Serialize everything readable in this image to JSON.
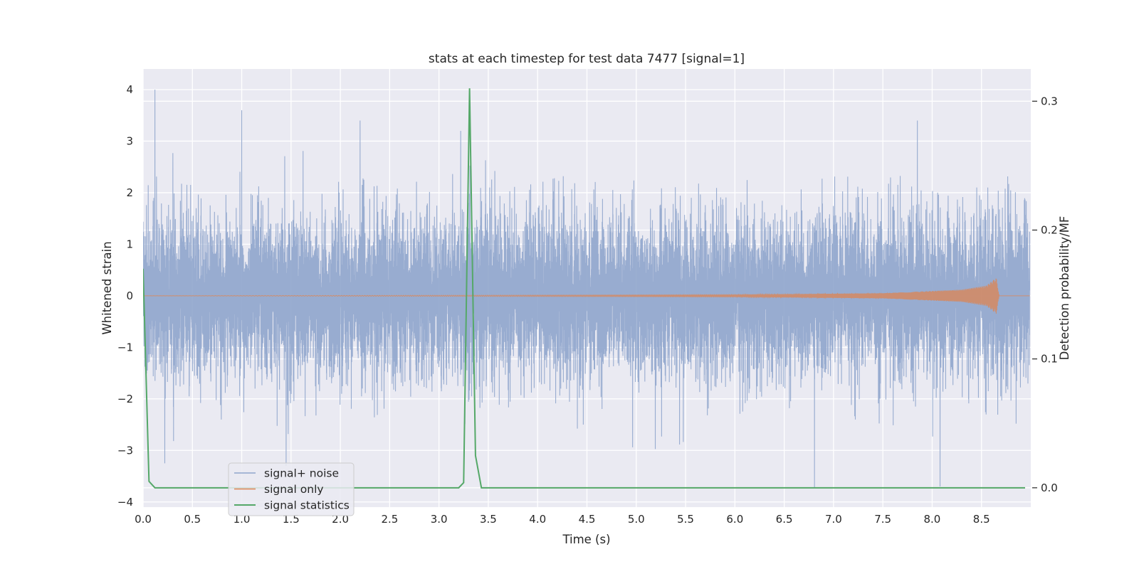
{
  "chart_data": {
    "type": "line",
    "title": "stats at each timestep for test data 7477 [signal=1]",
    "xlabel": "Time (s)",
    "ylabel_left": "Whitened strain",
    "ylabel_right": "Detection probability/MF",
    "xlim": [
      0,
      9
    ],
    "ylim_left": [
      -4.1,
      4.4
    ],
    "ylim_right": [
      -0.015,
      0.325
    ],
    "x_ticks": [
      "0.0",
      "0.5",
      "1.0",
      "1.5",
      "2.0",
      "2.5",
      "3.0",
      "3.5",
      "4.0",
      "4.5",
      "5.0",
      "5.5",
      "6.0",
      "6.5",
      "7.0",
      "7.5",
      "8.0",
      "8.5"
    ],
    "y_ticks_left": [
      "−4",
      "−3",
      "−2",
      "−1",
      "0",
      "1",
      "2",
      "3",
      "4"
    ],
    "y_ticks_right": [
      "0.0",
      "0.1",
      "0.2",
      "0.3"
    ],
    "grid": true,
    "legend_position": "lower-left",
    "series": [
      {
        "name": "signal+ noise",
        "axis": "left",
        "color": "#8fa5cc",
        "sample_rate_hz": 1000,
        "envelope_typical": [
          -1.2,
          1.2
        ],
        "notable_peaks": [
          {
            "x": 0.12,
            "y": 4.0
          },
          {
            "x": 1.0,
            "y": 3.6
          },
          {
            "x": 2.2,
            "y": 3.4
          },
          {
            "x": 3.22,
            "y": 3.2
          },
          {
            "x": 8.08,
            "y": -3.7
          },
          {
            "x": 7.85,
            "y": 3.4
          },
          {
            "x": 1.45,
            "y": -3.3
          },
          {
            "x": 0.22,
            "y": -3.25
          }
        ]
      },
      {
        "name": "signal only",
        "axis": "left",
        "color": "#dd8452",
        "description_points": [
          {
            "x": 0.0,
            "y": 0.0
          },
          {
            "x": 6.0,
            "y": 0.02
          },
          {
            "x": 7.5,
            "y": 0.05
          },
          {
            "x": 8.3,
            "y": 0.12
          },
          {
            "x": 8.55,
            "y": 0.2
          },
          {
            "x": 8.65,
            "y": 0.35
          },
          {
            "x": 8.68,
            "y": 0.0
          }
        ]
      },
      {
        "name": "signal statistics",
        "axis": "right",
        "color": "#55a868",
        "x": [
          0.0,
          0.06,
          0.12,
          3.0,
          3.2,
          3.25,
          3.31,
          3.37,
          3.43,
          9.0
        ],
        "y": [
          0.17,
          0.005,
          0.0,
          0.0,
          0.0,
          0.004,
          0.31,
          0.025,
          0.0,
          0.0
        ]
      }
    ]
  }
}
